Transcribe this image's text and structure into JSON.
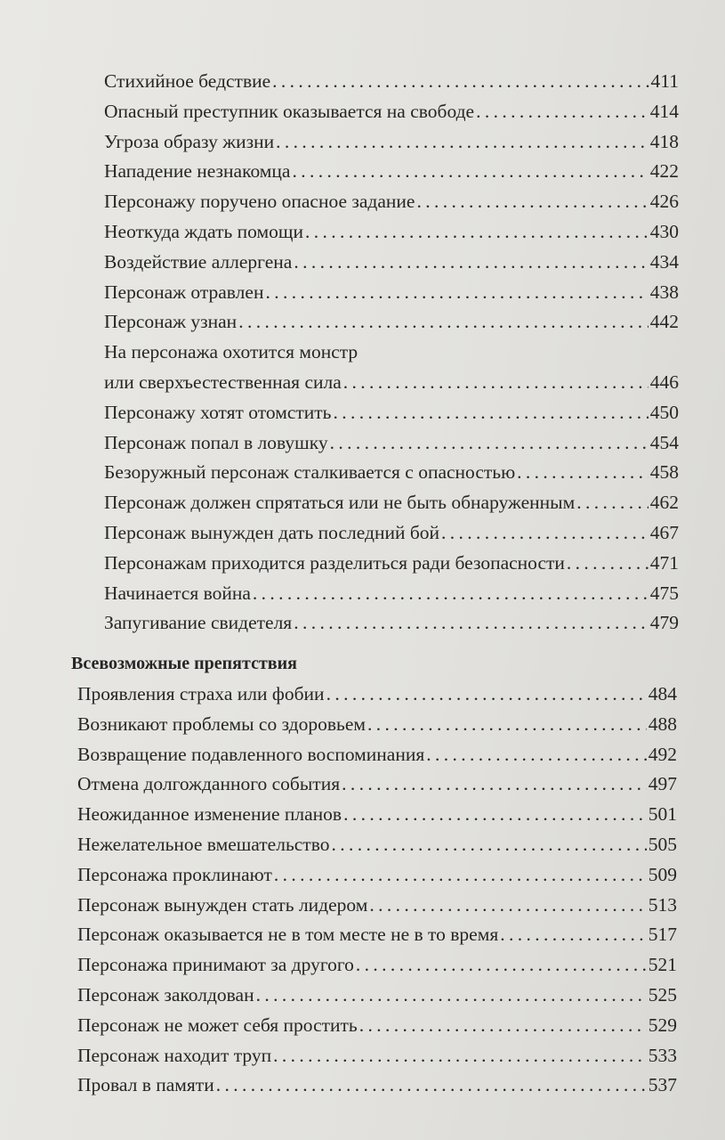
{
  "section1": {
    "entries": [
      {
        "title": "Стихийное бедствие",
        "page": "411"
      },
      {
        "title": "Опасный преступник оказывается на свободе",
        "page": "414"
      },
      {
        "title": "Угроза образу жизни",
        "page": "418"
      },
      {
        "title": "Нападение незнакомца",
        "page": "422"
      },
      {
        "title": "Персонажу поручено опасное задание",
        "page": "426"
      },
      {
        "title": "Неоткуда ждать помощи",
        "page": "430"
      },
      {
        "title": "Воздействие аллергена",
        "page": "434"
      },
      {
        "title": "Персонаж отравлен",
        "page": "438"
      },
      {
        "title": "Персонаж узнан",
        "page": "442"
      },
      {
        "title": "На персонажа охотится монстр",
        "page": null
      },
      {
        "title": "или сверхъестественная сила",
        "page": "446"
      },
      {
        "title": "Персонажу хотят отомстить",
        "page": "450"
      },
      {
        "title": "Персонаж попал в ловушку",
        "page": "454"
      },
      {
        "title": "Безоружный персонаж сталкивается с опасностью",
        "page": "458"
      },
      {
        "title": "Персонаж должен спрятаться или не быть обнаруженным",
        "page": "462"
      },
      {
        "title": "Персонаж вынужден дать последний бой",
        "page": "467"
      },
      {
        "title": "Персонажам приходится разделиться ради безопасности",
        "page": "471"
      },
      {
        "title": "Начинается война",
        "page": "475"
      },
      {
        "title": "Запугивание свидетеля",
        "page": "479"
      }
    ]
  },
  "section2": {
    "heading": "Всевозможные препятствия",
    "entries": [
      {
        "title": "Проявления страха или фобии",
        "page": "484"
      },
      {
        "title": "Возникают проблемы со здоровьем",
        "page": "488"
      },
      {
        "title": "Возвращение подавленного воспоминания",
        "page": "492"
      },
      {
        "title": "Отмена долгожданного события",
        "page": "497"
      },
      {
        "title": "Неожиданное изменение планов",
        "page": "501"
      },
      {
        "title": "Нежелательное вмешательство",
        "page": "505"
      },
      {
        "title": "Персонажа проклинают",
        "page": "509"
      },
      {
        "title": "Персонаж вынужден стать лидером",
        "page": "513"
      },
      {
        "title": "Персонаж оказывается не в том месте не в то время",
        "page": "517"
      },
      {
        "title": "Персонажа принимают за другого",
        "page": "521"
      },
      {
        "title": "Персонаж заколдован",
        "page": "525"
      },
      {
        "title": "Персонаж не может себя простить",
        "page": "529"
      },
      {
        "title": "Персонаж находит труп",
        "page": "533"
      },
      {
        "title": "Провал в памяти",
        "page": "537"
      }
    ]
  }
}
